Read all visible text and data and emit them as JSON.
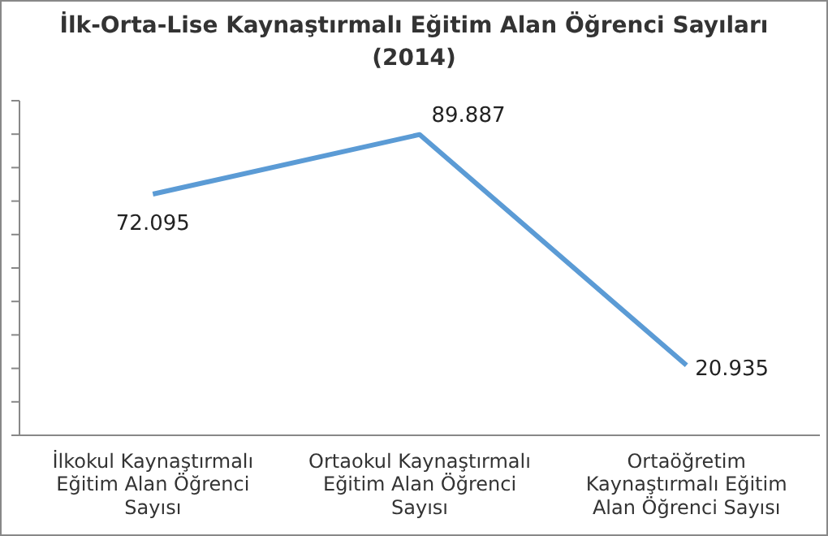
{
  "chart_data": {
    "type": "line",
    "title": "İlk-Orta-Lise Kaynaştırmalı Eğitim Alan Öğrenci  Sayıları",
    "subtitle": "(2014)",
    "categories": [
      "İlkokul Kaynaştırmalı Eğitim Alan Öğrenci Sayısı",
      "Ortaokul Kaynaştırmalı Eğitim Alan Öğrenci Sayısı",
      "Ortaöğretim Kaynaştırmalı Eğitim Alan Öğrenci Sayısı"
    ],
    "series": [
      {
        "color": "#5b9bd5",
        "values": [
          72095,
          89887,
          20935
        ],
        "value_labels": [
          "72.095",
          "89.887",
          "20.935"
        ]
      }
    ],
    "ylim": [
      0,
      100000
    ],
    "yticks": [
      {
        "value": 0,
        "label": null
      },
      {
        "value": 10000,
        "label": null
      },
      {
        "value": 20000,
        "label": null
      },
      {
        "value": 30000,
        "label": null
      },
      {
        "value": 40000,
        "label": null
      },
      {
        "value": 50000,
        "label": null
      },
      {
        "value": 60000,
        "label": null
      },
      {
        "value": 70000,
        "label": null
      },
      {
        "value": 80000,
        "label": null
      },
      {
        "value": 90000,
        "label": null
      },
      {
        "value": 100000,
        "label": null
      }
    ],
    "tick_labels": "x",
    "marker": "none",
    "line_style": "solid",
    "grid": false
  }
}
